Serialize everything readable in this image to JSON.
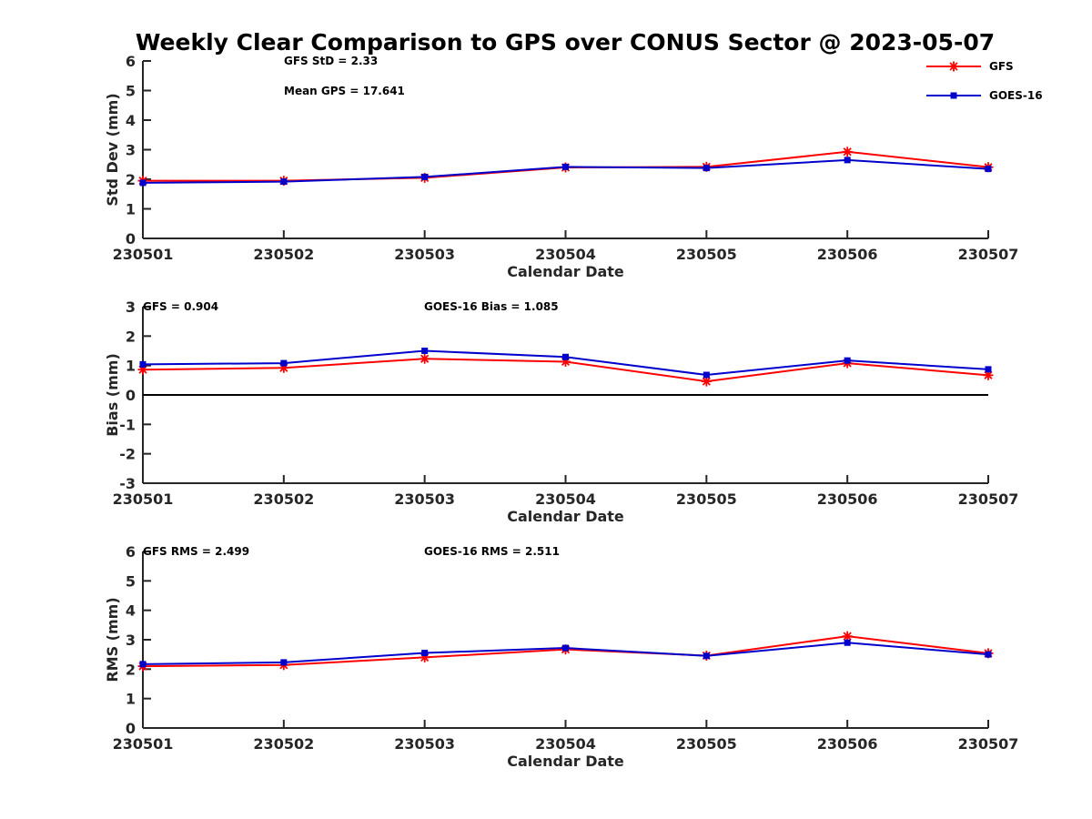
{
  "title": "Weekly Clear Comparison to GPS over CONUS Sector @ 2023-05-07",
  "colors": {
    "GFS": "#ff0000",
    "GOES-16": "#0000cc",
    "axis": "#262626",
    "zero_line": "#000000"
  },
  "legend": {
    "position": "top-right",
    "entries": [
      "GFS",
      "GOES-16"
    ]
  },
  "chart_data": [
    {
      "type": "line",
      "xlabel": "Calendar Date",
      "ylabel": "Std Dev (mm)",
      "categories": [
        "230501",
        "230502",
        "230503",
        "230504",
        "230505",
        "230506",
        "230507"
      ],
      "ylim": [
        0,
        6
      ],
      "yticks": [
        "0",
        "1",
        "2",
        "3",
        "4",
        "5",
        "6"
      ],
      "annotations": [
        "GFS StD = 2.33",
        "Mean GPS = 17.641"
      ],
      "series": [
        {
          "name": "GFS",
          "marker": "asterisk",
          "values": [
            1.95,
            1.95,
            2.05,
            2.4,
            2.42,
            2.93,
            2.41
          ]
        },
        {
          "name": "GOES-16",
          "marker": "square",
          "values": [
            1.88,
            1.92,
            2.08,
            2.42,
            2.38,
            2.65,
            2.35
          ]
        }
      ]
    },
    {
      "type": "line",
      "xlabel": "Calendar Date",
      "ylabel": "Bias (mm)",
      "categories": [
        "230501",
        "230502",
        "230503",
        "230504",
        "230505",
        "230506",
        "230507"
      ],
      "ylim": [
        -3,
        3
      ],
      "yticks": [
        "-3",
        "-2",
        "-1",
        "0",
        "1",
        "2",
        "3"
      ],
      "zero_line": true,
      "annotations": [
        "GFS = 0.904",
        "GOES-16 Bias  = 1.085"
      ],
      "series": [
        {
          "name": "GFS",
          "marker": "asterisk",
          "values": [
            0.86,
            0.92,
            1.23,
            1.13,
            0.46,
            1.08,
            0.67
          ]
        },
        {
          "name": "GOES-16",
          "marker": "square",
          "values": [
            1.04,
            1.08,
            1.5,
            1.29,
            0.68,
            1.17,
            0.87
          ]
        }
      ]
    },
    {
      "type": "line",
      "xlabel": "Calendar Date",
      "ylabel": "RMS (mm)",
      "categories": [
        "230501",
        "230502",
        "230503",
        "230504",
        "230505",
        "230506",
        "230507"
      ],
      "ylim": [
        0,
        6
      ],
      "yticks": [
        "0",
        "1",
        "2",
        "3",
        "4",
        "5",
        "6"
      ],
      "annotations": [
        "GFS RMS = 2.499",
        "GOES-16 RMS = 2.511"
      ],
      "series": [
        {
          "name": "GFS",
          "marker": "asterisk",
          "values": [
            2.1,
            2.14,
            2.4,
            2.67,
            2.46,
            3.12,
            2.54
          ]
        },
        {
          "name": "GOES-16",
          "marker": "square",
          "values": [
            2.17,
            2.23,
            2.55,
            2.72,
            2.45,
            2.9,
            2.5
          ]
        }
      ]
    }
  ]
}
